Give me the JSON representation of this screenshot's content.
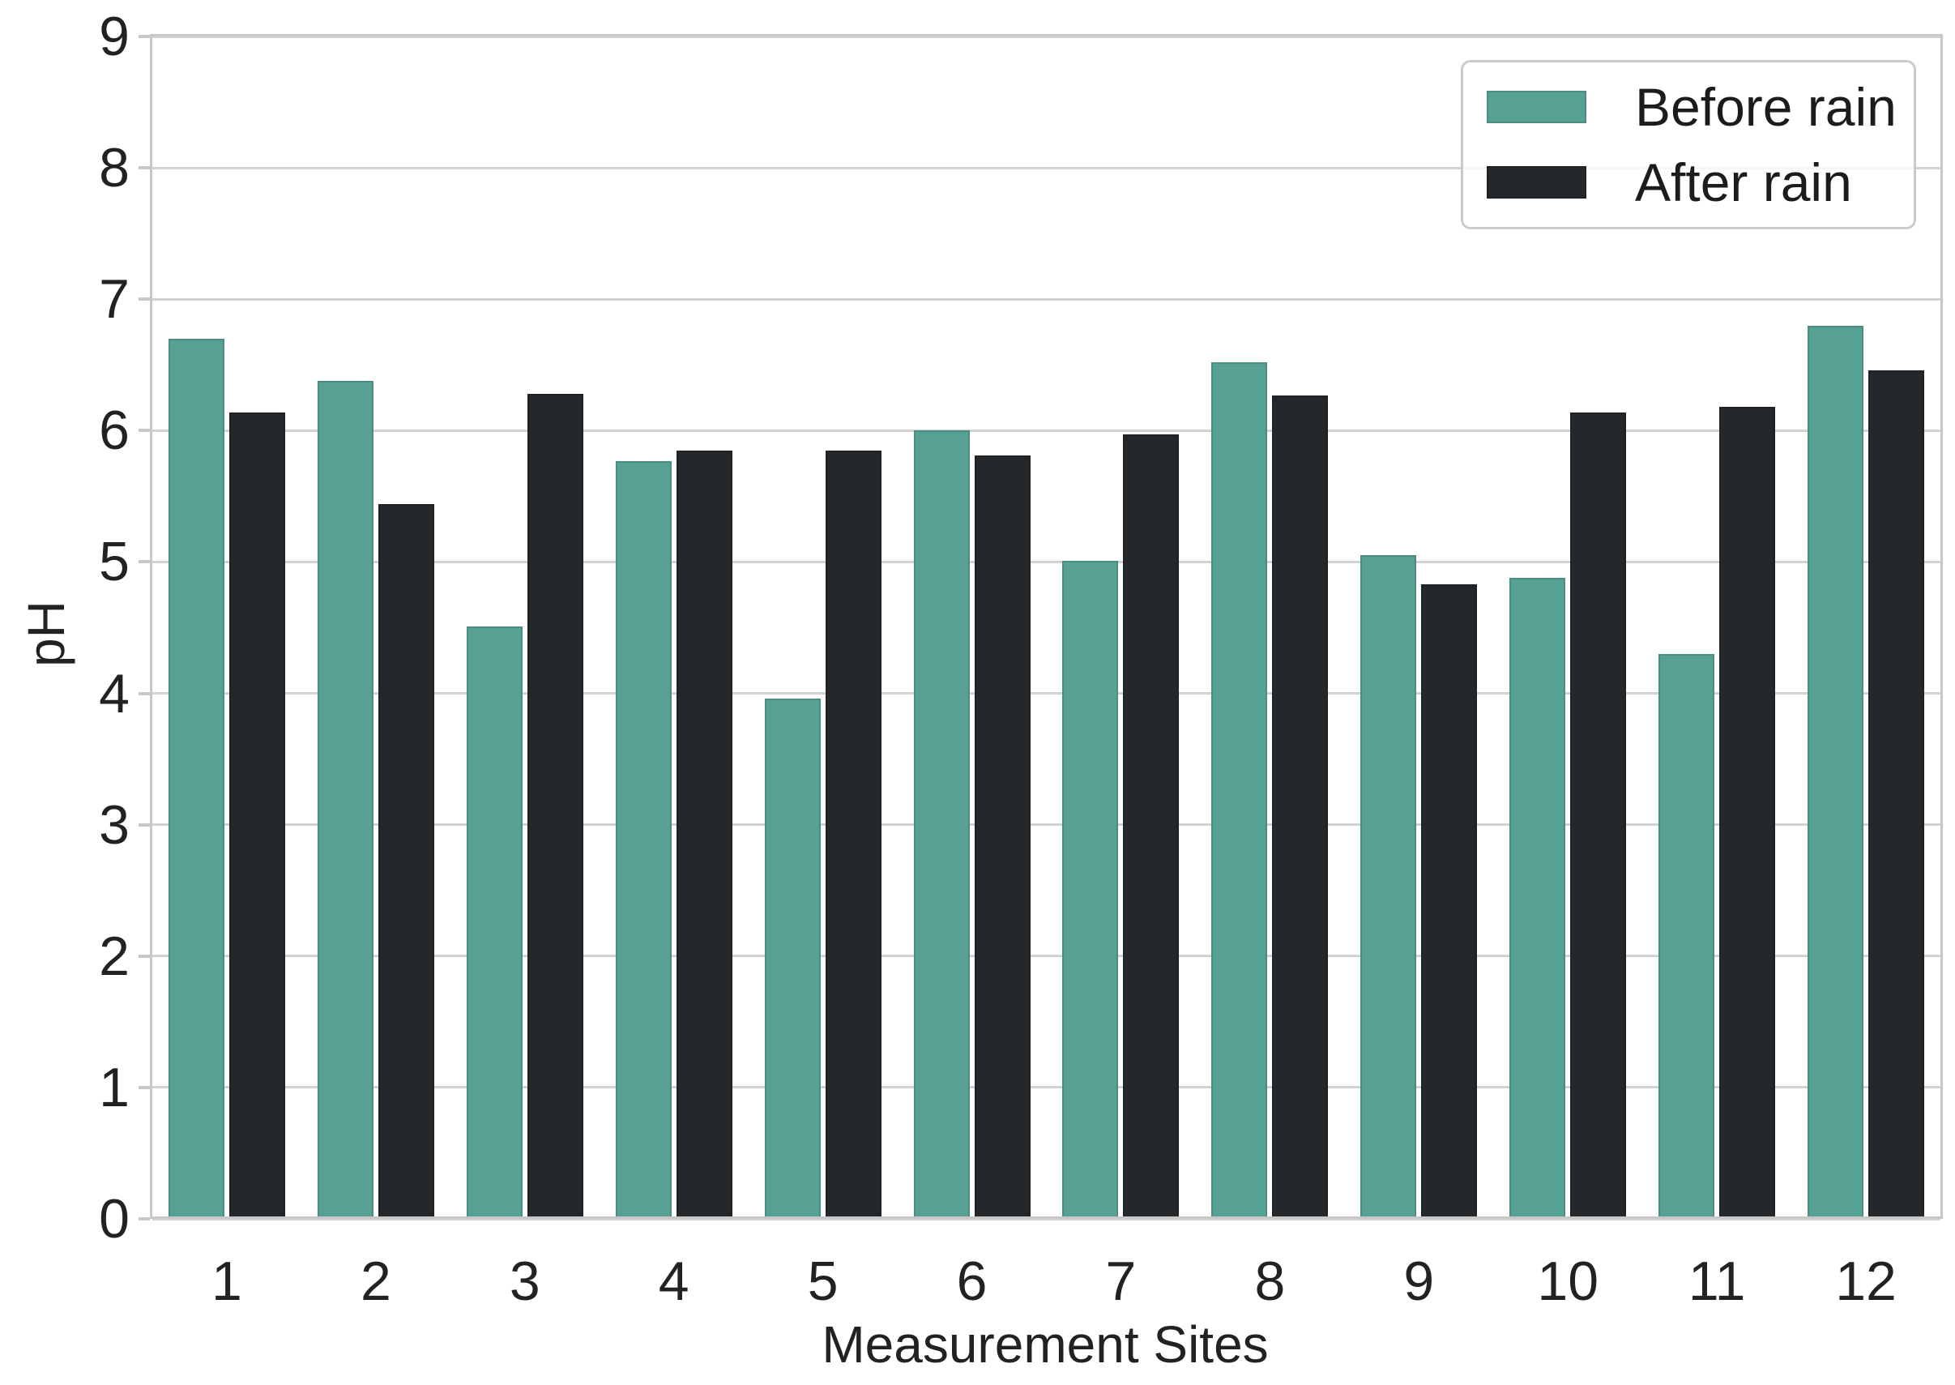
{
  "chart_data": {
    "type": "bar",
    "title": "",
    "xlabel": "Measurement Sites",
    "ylabel": "pH",
    "categories": [
      "1",
      "2",
      "3",
      "4",
      "5",
      "6",
      "7",
      "8",
      "9",
      "10",
      "11",
      "12"
    ],
    "series": [
      {
        "name": "Before rain",
        "color": "#57a094",
        "values": [
          6.7,
          6.38,
          4.51,
          5.77,
          3.96,
          6.0,
          5.01,
          6.52,
          5.05,
          4.88,
          4.3,
          6.8
        ]
      },
      {
        "name": "After rain",
        "color": "#24282b",
        "values": [
          6.14,
          5.44,
          6.28,
          5.85,
          5.85,
          5.81,
          5.97,
          6.27,
          4.83,
          6.14,
          6.18,
          6.46
        ]
      }
    ],
    "ylim": [
      0,
      9
    ],
    "yticks": [
      "0",
      "1",
      "2",
      "3",
      "4",
      "5",
      "6",
      "7",
      "8",
      "9"
    ],
    "grid": true,
    "legend_position": "upper right"
  },
  "legend": {
    "items": [
      {
        "label": "Before rain",
        "swatch_color": "#57a094"
      },
      {
        "label": "After rain",
        "swatch_color": "#24282b"
      }
    ]
  },
  "colors": {
    "background": "#ffffff",
    "gridline": "#d2d2d2",
    "spine": "#c7c7c7",
    "tick_text": "#222222"
  }
}
